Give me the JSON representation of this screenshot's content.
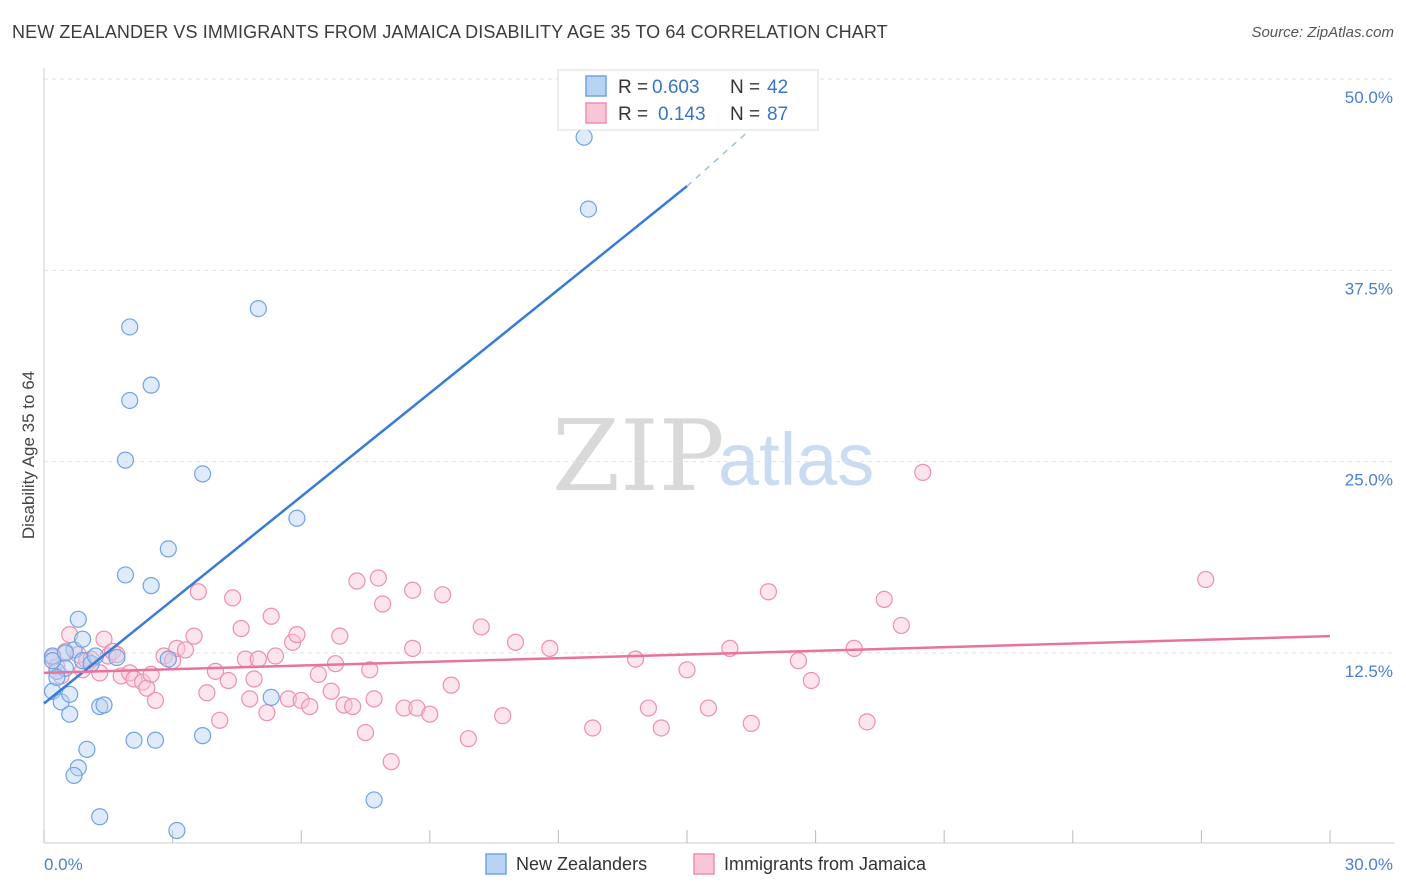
{
  "title": "NEW ZEALANDER VS IMMIGRANTS FROM JAMAICA DISABILITY AGE 35 TO 64 CORRELATION CHART",
  "source": "Source: ZipAtlas.com",
  "watermark": {
    "zip": "ZIP",
    "atlas": "atlas"
  },
  "legend_top": {
    "rows": [
      {
        "r_label": "R = ",
        "r_value": "0.603",
        "n_label": "N = ",
        "n_value": "42"
      },
      {
        "r_label": "R = ",
        "r_value": "0.143",
        "n_label": "N = ",
        "n_value": "87"
      }
    ]
  },
  "chart_data": {
    "type": "scatter",
    "title": "NEW ZEALANDER VS IMMIGRANTS FROM JAMAICA DISABILITY AGE 35 TO 64 CORRELATION CHART",
    "xlabel": "",
    "ylabel": "Disability Age 35 to 64",
    "xlim": [
      0,
      30
    ],
    "ylim": [
      0,
      51.5
    ],
    "x_ticks": [
      "0.0%",
      "30.0%"
    ],
    "y_ticks": [
      {
        "value": 12.5,
        "label": "12.5%"
      },
      {
        "value": 25.0,
        "label": "25.0%"
      },
      {
        "value": 37.5,
        "label": "37.5%"
      },
      {
        "value": 50.0,
        "label": "50.0%"
      }
    ],
    "grid": "horizontal dashed",
    "legend_placement": "bottom",
    "series": [
      {
        "name": "New Zealanders",
        "color": "#6fa3e6",
        "fill": "#b9d3f4",
        "r": 0.603,
        "n": 42,
        "trend": {
          "x0": 0.0,
          "y0": 9.2,
          "x1": 15.0,
          "y1": 43.0,
          "dash_to": [
            18.0,
            50.5
          ]
        },
        "points": [
          [
            0.2,
            12.3
          ],
          [
            0.3,
            11.3
          ],
          [
            0.2,
            10.0
          ],
          [
            0.4,
            9.3
          ],
          [
            0.5,
            11.5
          ],
          [
            0.6,
            9.8
          ],
          [
            0.6,
            8.5
          ],
          [
            0.7,
            12.7
          ],
          [
            0.8,
            14.7
          ],
          [
            0.9,
            13.4
          ],
          [
            0.8,
            5.0
          ],
          [
            0.9,
            12.0
          ],
          [
            1.0,
            6.2
          ],
          [
            1.1,
            11.8
          ],
          [
            1.3,
            9.0
          ],
          [
            1.4,
            9.1
          ],
          [
            0.7,
            4.5
          ],
          [
            1.3,
            1.8
          ],
          [
            1.7,
            12.2
          ],
          [
            1.9,
            17.6
          ],
          [
            1.9,
            25.1
          ],
          [
            2.0,
            33.8
          ],
          [
            2.0,
            29.0
          ],
          [
            2.1,
            6.8
          ],
          [
            2.5,
            30.0
          ],
          [
            2.5,
            16.9
          ],
          [
            2.6,
            6.8
          ],
          [
            2.9,
            12.1
          ],
          [
            2.9,
            19.3
          ],
          [
            3.1,
            0.9
          ],
          [
            3.7,
            24.2
          ],
          [
            3.7,
            7.1
          ],
          [
            5.0,
            35.0
          ],
          [
            5.3,
            9.6
          ],
          [
            5.9,
            21.3
          ],
          [
            7.7,
            2.9
          ],
          [
            12.6,
            46.2
          ],
          [
            12.7,
            41.5
          ],
          [
            0.2,
            12.0
          ],
          [
            0.3,
            10.9
          ],
          [
            0.5,
            12.5
          ],
          [
            1.2,
            12.3
          ]
        ]
      },
      {
        "name": "Immigrants from Jamaica",
        "color": "#ee8fae",
        "fill": "#f9c6d6",
        "r": 0.143,
        "n": 87,
        "trend": {
          "x0": 0.0,
          "y0": 11.2,
          "x1": 30.0,
          "y1": 13.6
        },
        "points": [
          [
            0.2,
            12.2
          ],
          [
            0.3,
            11.6
          ],
          [
            0.5,
            12.6
          ],
          [
            0.6,
            13.7
          ],
          [
            0.8,
            12.4
          ],
          [
            0.9,
            11.4
          ],
          [
            1.0,
            12.0
          ],
          [
            1.1,
            12.1
          ],
          [
            1.3,
            11.2
          ],
          [
            1.4,
            13.4
          ],
          [
            1.5,
            12.3
          ],
          [
            1.6,
            12.6
          ],
          [
            1.8,
            11.0
          ],
          [
            2.0,
            11.2
          ],
          [
            2.1,
            10.8
          ],
          [
            2.3,
            10.6
          ],
          [
            2.4,
            10.2
          ],
          [
            2.5,
            11.1
          ],
          [
            2.6,
            9.4
          ],
          [
            2.8,
            12.3
          ],
          [
            3.0,
            12.0
          ],
          [
            3.1,
            12.8
          ],
          [
            3.3,
            12.7
          ],
          [
            3.5,
            13.6
          ],
          [
            3.6,
            16.5
          ],
          [
            3.8,
            9.9
          ],
          [
            4.0,
            11.3
          ],
          [
            4.1,
            8.1
          ],
          [
            4.3,
            10.7
          ],
          [
            4.4,
            16.1
          ],
          [
            4.6,
            14.1
          ],
          [
            4.7,
            12.1
          ],
          [
            4.8,
            9.5
          ],
          [
            4.9,
            10.8
          ],
          [
            5.0,
            12.1
          ],
          [
            5.2,
            8.6
          ],
          [
            5.4,
            12.3
          ],
          [
            5.3,
            14.9
          ],
          [
            5.7,
            9.5
          ],
          [
            5.8,
            13.2
          ],
          [
            5.9,
            13.7
          ],
          [
            6.0,
            9.4
          ],
          [
            6.2,
            9.0
          ],
          [
            6.4,
            11.1
          ],
          [
            6.7,
            10.0
          ],
          [
            6.8,
            11.8
          ],
          [
            6.9,
            13.6
          ],
          [
            7.0,
            9.1
          ],
          [
            7.2,
            9.0
          ],
          [
            7.3,
            17.2
          ],
          [
            7.5,
            7.3
          ],
          [
            7.7,
            9.5
          ],
          [
            7.8,
            17.4
          ],
          [
            7.9,
            15.7
          ],
          [
            7.6,
            11.4
          ],
          [
            8.1,
            5.4
          ],
          [
            8.4,
            8.9
          ],
          [
            8.6,
            12.8
          ],
          [
            8.6,
            16.6
          ],
          [
            8.7,
            8.9
          ],
          [
            9.0,
            8.5
          ],
          [
            9.3,
            16.3
          ],
          [
            9.5,
            10.4
          ],
          [
            9.9,
            6.9
          ],
          [
            10.2,
            14.2
          ],
          [
            10.7,
            8.4
          ],
          [
            11.0,
            13.2
          ],
          [
            11.8,
            12.8
          ],
          [
            12.8,
            7.6
          ],
          [
            13.8,
            12.1
          ],
          [
            14.1,
            8.9
          ],
          [
            14.4,
            7.6
          ],
          [
            15.0,
            11.4
          ],
          [
            15.5,
            8.9
          ],
          [
            16.0,
            12.8
          ],
          [
            16.5,
            7.9
          ],
          [
            16.9,
            16.5
          ],
          [
            17.6,
            12.0
          ],
          [
            17.9,
            10.7
          ],
          [
            18.9,
            12.8
          ],
          [
            19.2,
            8.0
          ],
          [
            19.6,
            16.0
          ],
          [
            20.0,
            14.3
          ],
          [
            20.5,
            24.3
          ],
          [
            27.1,
            17.3
          ],
          [
            0.4,
            11.0
          ],
          [
            1.7,
            12.4
          ]
        ]
      }
    ]
  }
}
